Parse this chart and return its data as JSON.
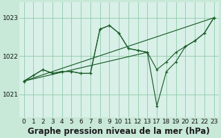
{
  "background_color": "#c8e8d8",
  "plot_bg_color": "#d8f0e8",
  "grid_color": "#90c8a8",
  "line_color": "#1a5c28",
  "xlabel": "Graphe pression niveau de la mer (hPa)",
  "xlabel_fontsize": 8.5,
  "tick_fontsize": 6.5,
  "xlim": [
    -0.5,
    23.5
  ],
  "ylim": [
    1020.4,
    1023.4
  ],
  "yticks": [
    1021,
    1022,
    1023
  ],
  "xticks": [
    0,
    1,
    2,
    3,
    4,
    5,
    6,
    7,
    8,
    9,
    10,
    11,
    12,
    13,
    17,
    18,
    19,
    20,
    21,
    22,
    23
  ],
  "series": [
    {
      "x": [
        0,
        2,
        3,
        4,
        5,
        6,
        7,
        8,
        9,
        10,
        11,
        12,
        13
      ],
      "y": [
        1021.35,
        1021.65,
        1021.55,
        1021.6,
        1021.6,
        1021.55,
        1021.55,
        1022.7,
        1022.8,
        1022.6,
        1022.2,
        1022.15,
        1022.1
      ]
    },
    {
      "x": [
        0,
        1,
        2,
        3,
        4,
        5,
        6,
        7,
        8,
        9,
        10,
        11,
        12,
        13,
        17,
        18,
        19,
        20,
        21,
        22,
        23
      ],
      "y": [
        1021.35,
        1021.5,
        1021.65,
        1021.55,
        1021.6,
        1021.6,
        1021.55,
        1021.55,
        1022.7,
        1022.8,
        1022.6,
        1022.2,
        1022.15,
        1022.1,
        1020.7,
        1021.6,
        1021.85,
        1022.25,
        1022.4,
        1022.6,
        1023.0
      ]
    },
    {
      "x": [
        0,
        23
      ],
      "y": [
        1021.35,
        1023.0
      ]
    },
    {
      "x": [
        0,
        13,
        17,
        18,
        19,
        20,
        21,
        22,
        23
      ],
      "y": [
        1021.35,
        1022.1,
        1021.65,
        1021.85,
        1022.1,
        1022.25,
        1022.4,
        1022.6,
        1023.0
      ]
    }
  ]
}
